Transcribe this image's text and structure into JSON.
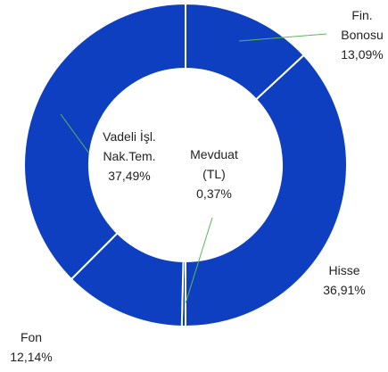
{
  "chart_data": {
    "type": "donut",
    "categories": [
      "Fin. Bonosu",
      "Hisse",
      "Mevduat (TL)",
      "Fon",
      "Vadeli İşl. Nak.Tem."
    ],
    "values": [
      13.09,
      36.91,
      0.37,
      12.14,
      37.49
    ],
    "value_labels": [
      "13,09%",
      "36,91%",
      "0,37%",
      "12,14%",
      "37,49%"
    ],
    "color": "#0d3fc0"
  }
}
